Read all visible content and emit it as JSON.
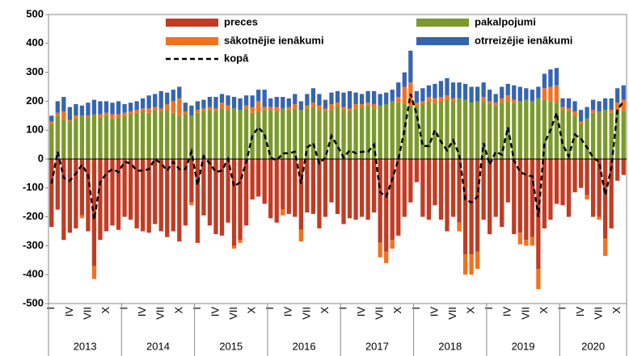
{
  "chart_data": {
    "type": "bar",
    "stacked": true,
    "categories": [
      "I",
      null,
      null,
      "IV",
      null,
      null,
      "VII",
      null,
      null,
      "X",
      null,
      null,
      "I",
      null,
      null,
      "IV",
      null,
      null,
      "VII",
      null,
      null,
      "X",
      null,
      null,
      "I",
      null,
      null,
      "IV",
      null,
      null,
      "VII",
      null,
      null,
      "X",
      null,
      null,
      "I",
      null,
      null,
      "IV",
      null,
      null,
      "VII",
      null,
      null,
      "X",
      null,
      null,
      "I",
      null,
      null,
      "IV",
      null,
      null,
      "VII",
      null,
      null,
      "X",
      null,
      null,
      "I",
      null,
      null,
      "IV",
      null,
      null,
      "VII",
      null,
      null,
      "X",
      null,
      null,
      "I",
      null,
      null,
      "IV",
      null,
      null,
      "VII",
      null,
      null,
      "X",
      null,
      null,
      "I",
      null,
      null,
      "IV",
      null,
      null,
      "VII",
      null,
      null,
      "X",
      null
    ],
    "years": [
      {
        "label": "2013",
        "months": 12
      },
      {
        "label": "2014",
        "months": 12
      },
      {
        "label": "2015",
        "months": 12
      },
      {
        "label": "2016",
        "months": 12
      },
      {
        "label": "2017",
        "months": 12
      },
      {
        "label": "2018",
        "months": 12
      },
      {
        "label": "2019",
        "months": 12
      },
      {
        "label": "2020",
        "months": 11
      }
    ],
    "series": [
      {
        "name": "preces",
        "color": "#c23b22",
        "kind": "bar",
        "values": [
          -235,
          -175,
          -280,
          -255,
          -240,
          -195,
          -250,
          -370,
          -280,
          -250,
          -230,
          -245,
          -200,
          -210,
          -240,
          -250,
          -255,
          -225,
          -250,
          -270,
          -250,
          -285,
          -230,
          -150,
          -290,
          -195,
          -230,
          -260,
          -265,
          -220,
          -300,
          -280,
          -230,
          -140,
          -130,
          -155,
          -205,
          -220,
          -175,
          -190,
          -200,
          -245,
          -185,
          -190,
          -240,
          -200,
          -150,
          -190,
          -225,
          -205,
          -210,
          -200,
          -210,
          -185,
          -290,
          -320,
          -280,
          -265,
          -200,
          -150,
          -80,
          -200,
          -210,
          -160,
          -210,
          -250,
          -200,
          -220,
          -330,
          -330,
          -320,
          -210,
          -260,
          -200,
          -235,
          -150,
          -260,
          -255,
          -280,
          -270,
          -380,
          -240,
          -210,
          -155,
          -160,
          -200,
          -115,
          -100,
          -125,
          -200,
          -200,
          -275,
          -240,
          -75,
          -55
        ]
      },
      {
        "name": "pakalpojumi",
        "color": "#7b9a2a",
        "kind": "bar",
        "values": [
          120,
          150,
          135,
          130,
          140,
          150,
          145,
          155,
          145,
          150,
          140,
          145,
          150,
          155,
          160,
          165,
          160,
          170,
          165,
          170,
          160,
          150,
          155,
          150,
          160,
          165,
          170,
          165,
          175,
          170,
          175,
          170,
          175,
          160,
          165,
          170,
          170,
          165,
          175,
          170,
          175,
          170,
          175,
          180,
          170,
          165,
          170,
          180,
          170,
          165,
          175,
          180,
          185,
          175,
          185,
          190,
          200,
          195,
          190,
          185,
          185,
          190,
          200,
          195,
          200,
          205,
          200,
          210,
          205,
          195,
          200,
          200,
          190,
          185,
          195,
          200,
          195,
          200,
          205,
          200,
          210,
          205,
          200,
          195,
          170,
          165,
          150,
          120,
          140,
          160,
          165,
          170,
          160,
          165,
          165
        ]
      },
      {
        "name": "sākotnējie ienākumi",
        "color": "#f5701e",
        "kind": "bar",
        "values": [
          10,
          10,
          30,
          5,
          10,
          -10,
          5,
          -45,
          10,
          10,
          15,
          10,
          10,
          10,
          10,
          10,
          15,
          10,
          10,
          20,
          40,
          60,
          10,
          -10,
          10,
          10,
          10,
          10,
          20,
          15,
          -10,
          -10,
          10,
          20,
          35,
          10,
          10,
          15,
          -20,
          10,
          15,
          -40,
          10,
          15,
          15,
          10,
          20,
          15,
          10,
          10,
          15,
          10,
          10,
          15,
          -50,
          -40,
          -30,
          20,
          60,
          80,
          10,
          10,
          15,
          15,
          15,
          15,
          10,
          -30,
          -70,
          -70,
          -60,
          15,
          10,
          10,
          15,
          20,
          10,
          -40,
          -20,
          -30,
          -70,
          40,
          50,
          60,
          10,
          10,
          15,
          10,
          -15,
          10,
          -10,
          -60,
          10,
          30,
          40
        ]
      },
      {
        "name": "otrreizējie ienākumi",
        "color": "#3565b0",
        "kind": "bar",
        "values": [
          20,
          40,
          50,
          45,
          40,
          35,
          45,
          50,
          45,
          40,
          40,
          45,
          30,
          30,
          30,
          35,
          45,
          45,
          60,
          40,
          40,
          40,
          30,
          35,
          30,
          30,
          35,
          40,
          30,
          35,
          40,
          40,
          35,
          40,
          40,
          60,
          30,
          35,
          40,
          30,
          35,
          30,
          40,
          50,
          40,
          30,
          40,
          40,
          50,
          60,
          40,
          35,
          40,
          45,
          40,
          40,
          40,
          50,
          50,
          110,
          40,
          45,
          40,
          50,
          55,
          60,
          55,
          55,
          55,
          55,
          50,
          50,
          40,
          30,
          40,
          40,
          50,
          50,
          40,
          40,
          40,
          50,
          60,
          60,
          30,
          35,
          35,
          40,
          40,
          35,
          35,
          40,
          40,
          50,
          50
        ]
      },
      {
        "name": "kopā",
        "color": "#000000",
        "kind": "line",
        "values": [
          -85,
          25,
          -65,
          -75,
          -50,
          -20,
          -55,
          -210,
          -80,
          -50,
          -35,
          -45,
          -10,
          -15,
          -40,
          -40,
          -35,
          0,
          -15,
          -40,
          -10,
          -35,
          -35,
          25,
          -90,
          10,
          -15,
          -45,
          -40,
          0,
          -95,
          -80,
          -10,
          80,
          110,
          85,
          5,
          -5,
          20,
          20,
          25,
          -85,
          40,
          55,
          -15,
          5,
          80,
          45,
          5,
          30,
          20,
          25,
          25,
          50,
          -115,
          -130,
          -70,
          0,
          100,
          225,
          155,
          45,
          45,
          100,
          60,
          30,
          65,
          15,
          -140,
          -150,
          -130,
          55,
          -20,
          25,
          15,
          110,
          -5,
          -45,
          -55,
          -60,
          -200,
          55,
          100,
          160,
          50,
          10,
          85,
          70,
          40,
          5,
          -10,
          -125,
          -30,
          170,
          200
        ]
      }
    ],
    "ylim": [
      -500,
      500
    ],
    "yticks": [
      -500,
      -400,
      -300,
      -200,
      -100,
      0,
      100,
      200,
      300,
      400,
      500
    ]
  }
}
